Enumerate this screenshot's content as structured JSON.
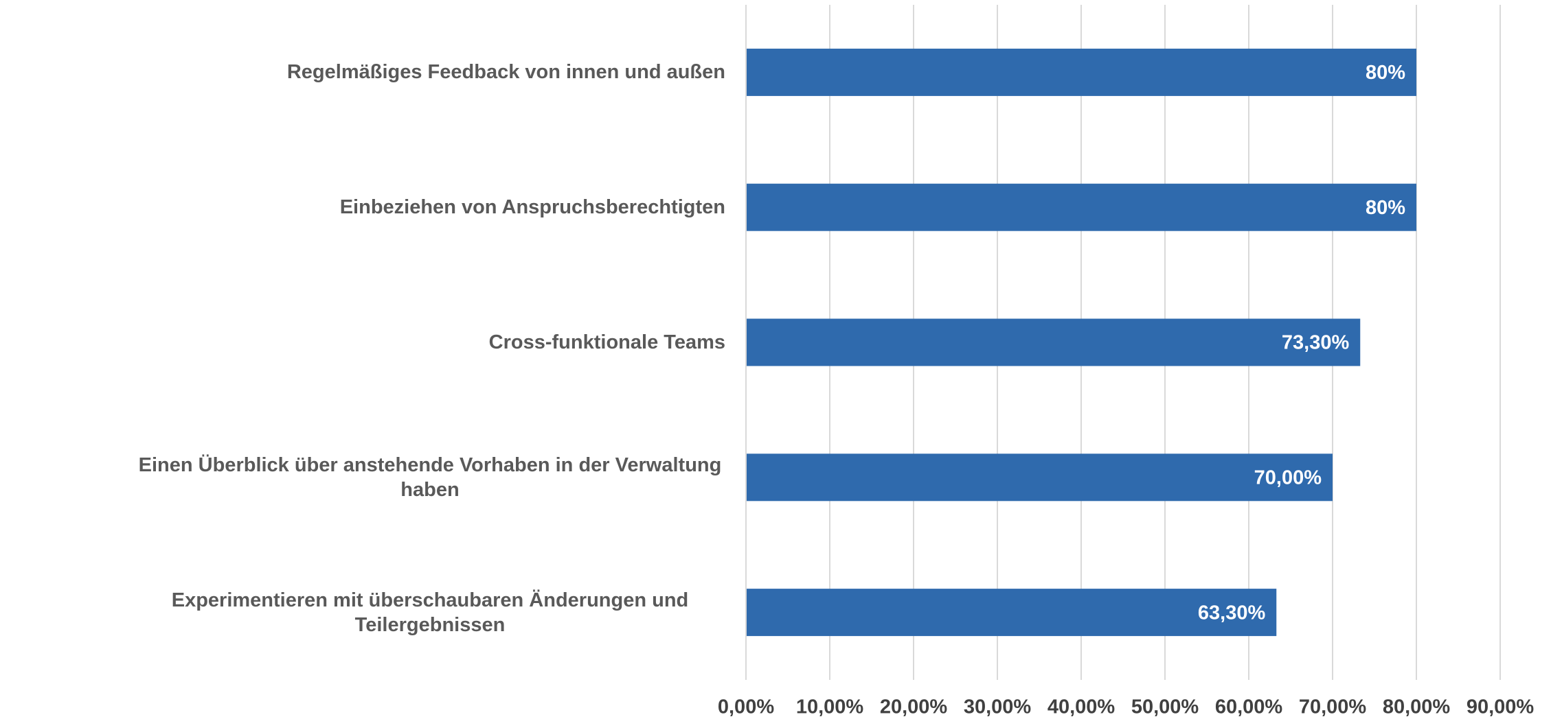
{
  "chart_data": {
    "type": "barh",
    "categories": [
      "Regelmäßiges Feedback von innen und außen",
      "Einbeziehen von Anspruchsberechtigten",
      "Cross-funktionale Teams",
      "Einen Überblick über anstehende Vorhaben in der Verwaltung haben",
      "Experimentieren mit überschaubaren Änderungen und Teilergebnissen"
    ],
    "values": [
      80,
      80,
      73.3,
      70,
      63.3
    ],
    "value_labels": [
      "80%",
      "80%",
      "73,30%",
      "70,00%",
      "63,30%"
    ],
    "color": "#2f6aad",
    "xlim": [
      0,
      90
    ],
    "xticks": [
      {
        "value": 0,
        "label": "0,00%"
      },
      {
        "value": 10,
        "label": "10,00%"
      },
      {
        "value": 20,
        "label": "20,00%"
      },
      {
        "value": 30,
        "label": "30,00%"
      },
      {
        "value": 40,
        "label": "40,00%"
      },
      {
        "value": 50,
        "label": "50,00%"
      },
      {
        "value": 60,
        "label": "60,00%"
      },
      {
        "value": 70,
        "label": "70,00%"
      },
      {
        "value": 80,
        "label": "80,00%"
      },
      {
        "value": 90,
        "label": "90,00%"
      }
    ],
    "grid": true
  }
}
